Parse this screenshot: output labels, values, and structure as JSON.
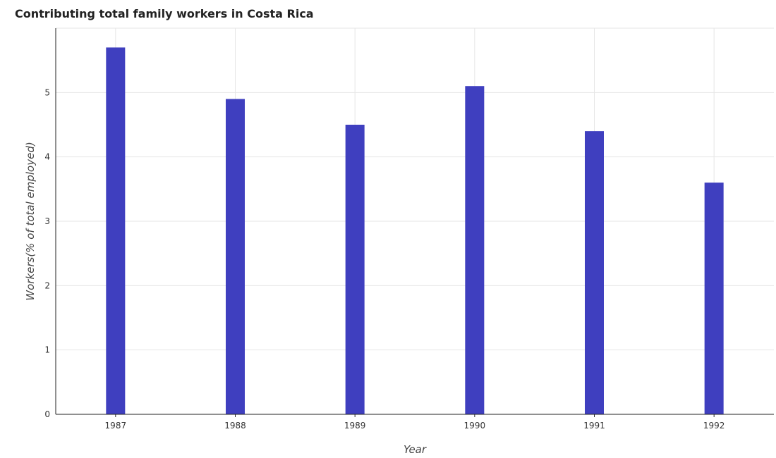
{
  "chart_data": {
    "type": "bar",
    "title": "Contributing total family workers in Costa Rica",
    "xlabel": "Year",
    "ylabel": "Workers(% of total employed)",
    "categories": [
      "1987",
      "1988",
      "1989",
      "1990",
      "1991",
      "1992"
    ],
    "values": [
      5.7,
      4.9,
      4.5,
      5.1,
      4.4,
      3.6
    ],
    "ylim": [
      0,
      6
    ],
    "yticks": [
      "0",
      "1",
      "2",
      "3",
      "4",
      "5"
    ],
    "grid": true,
    "bar_color": "#3f3fbf"
  }
}
